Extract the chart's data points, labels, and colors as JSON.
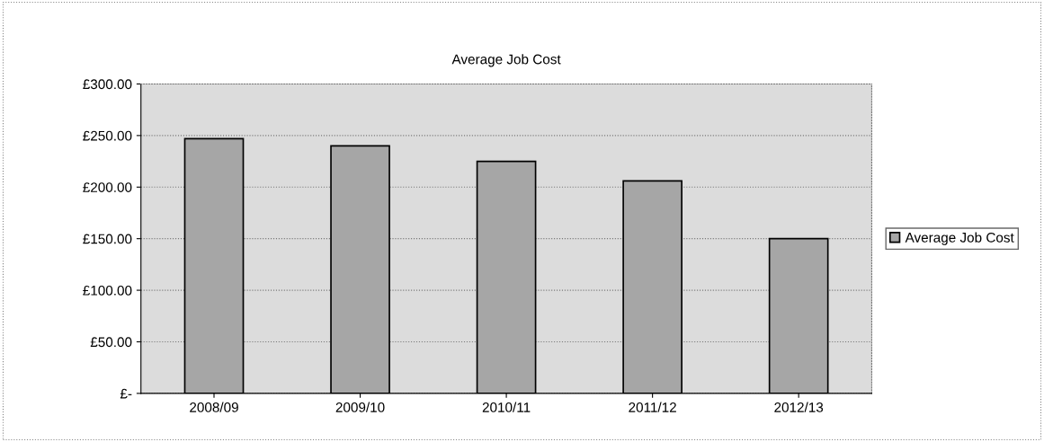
{
  "chart_data": {
    "type": "bar",
    "title": "Average Job Cost",
    "categories": [
      "2008/09",
      "2009/10",
      "2010/11",
      "2011/12",
      "2012/13"
    ],
    "series": [
      {
        "name": "Average Job Cost",
        "color": "#a6a6a6",
        "values": [
          247,
          240,
          225,
          206,
          150
        ]
      }
    ],
    "ylim": [
      0,
      300
    ],
    "yticks": [
      {
        "value": 0,
        "label": "£-"
      },
      {
        "value": 50,
        "label": "£50.00"
      },
      {
        "value": 100,
        "label": "£100.00"
      },
      {
        "value": 150,
        "label": "£150.00"
      },
      {
        "value": 200,
        "label": "£200.00"
      },
      {
        "value": 250,
        "label": "£250.00"
      },
      {
        "value": 300,
        "label": "£300.00"
      }
    ],
    "grid": "y",
    "legend": "right"
  }
}
